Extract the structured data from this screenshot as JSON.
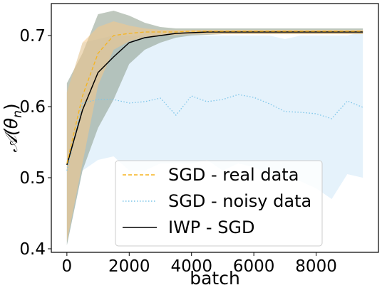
{
  "chart_data": {
    "type": "line",
    "xlabel": "batch",
    "ylabel": "𝒜(θ",
    "ylabel_sub": "n",
    "ylabel_close": ")",
    "xlim": [
      -500,
      10000
    ],
    "ylim": [
      0.395,
      0.745
    ],
    "xticks": [
      0,
      2000,
      4000,
      6000,
      8000
    ],
    "xtick_labels": [
      "0",
      "2000",
      "4000",
      "6000",
      "8000"
    ],
    "yticks": [
      0.4,
      0.5,
      0.6,
      0.7
    ],
    "ytick_labels": [
      "0.4",
      "0.5",
      "0.6",
      "0.7"
    ],
    "grid": false,
    "legend_position": "lower center",
    "series": [
      {
        "name": "SGD - noisy data",
        "color": "#7cc5e9",
        "style": "dotted",
        "band_color": "#cfe8f7",
        "x": [
          0,
          500,
          1000,
          1500,
          2000,
          2500,
          3000,
          3500,
          4000,
          4500,
          5000,
          5500,
          6000,
          6500,
          7000,
          7500,
          8000,
          8500,
          9000,
          9500
        ],
        "values": [
          0.51,
          0.605,
          0.61,
          0.61,
          0.605,
          0.607,
          0.612,
          0.588,
          0.615,
          0.607,
          0.61,
          0.617,
          0.613,
          0.604,
          0.593,
          0.592,
          0.59,
          0.583,
          0.608,
          0.599
        ],
        "upper": [
          0.62,
          0.69,
          0.695,
          0.7,
          0.7,
          0.7,
          0.7,
          0.7,
          0.7,
          0.7,
          0.7,
          0.7,
          0.7,
          0.7,
          0.695,
          0.7,
          0.7,
          0.7,
          0.7,
          0.705
        ],
        "lower": [
          0.405,
          0.51,
          0.525,
          0.53,
          0.51,
          0.51,
          0.52,
          0.52,
          0.52,
          0.525,
          0.51,
          0.52,
          0.515,
          0.505,
          0.5,
          0.495,
          0.485,
          0.47,
          0.505,
          0.5
        ]
      },
      {
        "name": "IWP - SGD",
        "color": "#000000",
        "style": "solid",
        "band_color": "#8a9a88",
        "x": [
          0,
          500,
          1000,
          1500,
          2000,
          2500,
          3000,
          3500,
          4000,
          4500,
          5000,
          5500,
          6000,
          6500,
          7000,
          7500,
          8000,
          8500,
          9000,
          9500
        ],
        "values": [
          0.518,
          0.595,
          0.648,
          0.67,
          0.69,
          0.697,
          0.7,
          0.703,
          0.704,
          0.705,
          0.705,
          0.705,
          0.705,
          0.705,
          0.705,
          0.705,
          0.705,
          0.705,
          0.705,
          0.705
        ],
        "upper": [
          0.633,
          0.675,
          0.73,
          0.735,
          0.728,
          0.718,
          0.712,
          0.71,
          0.71,
          0.71,
          0.71,
          0.71,
          0.71,
          0.71,
          0.71,
          0.71,
          0.71,
          0.71,
          0.71,
          0.71
        ],
        "lower": [
          0.405,
          0.51,
          0.57,
          0.61,
          0.66,
          0.68,
          0.69,
          0.697,
          0.7,
          0.701,
          0.702,
          0.702,
          0.702,
          0.702,
          0.702,
          0.702,
          0.702,
          0.702,
          0.702,
          0.702
        ]
      },
      {
        "name": "SGD - real data",
        "color": "#f5b41e",
        "style": "dashed",
        "band_color": "#f5c888",
        "x": [
          0,
          500,
          1000,
          1500,
          2000,
          2500,
          3000,
          3500,
          4000,
          4500,
          5000,
          5500,
          6000,
          6500,
          7000,
          7500,
          8000,
          8500,
          9000,
          9500
        ],
        "values": [
          0.52,
          0.615,
          0.675,
          0.7,
          0.703,
          0.705,
          0.705,
          0.705,
          0.706,
          0.706,
          0.706,
          0.706,
          0.706,
          0.706,
          0.706,
          0.706,
          0.706,
          0.706,
          0.706,
          0.706
        ],
        "upper": [
          0.62,
          0.69,
          0.712,
          0.72,
          0.714,
          0.71,
          0.708,
          0.708,
          0.708,
          0.708,
          0.708,
          0.708,
          0.708,
          0.708,
          0.708,
          0.708,
          0.708,
          0.708,
          0.708,
          0.708
        ],
        "lower": [
          0.41,
          0.52,
          0.63,
          0.68,
          0.692,
          0.698,
          0.7,
          0.701,
          0.702,
          0.702,
          0.702,
          0.702,
          0.702,
          0.702,
          0.702,
          0.702,
          0.702,
          0.702,
          0.702,
          0.702
        ]
      }
    ],
    "legend_order": [
      "SGD - real data",
      "SGD - noisy data",
      "IWP - SGD"
    ]
  }
}
